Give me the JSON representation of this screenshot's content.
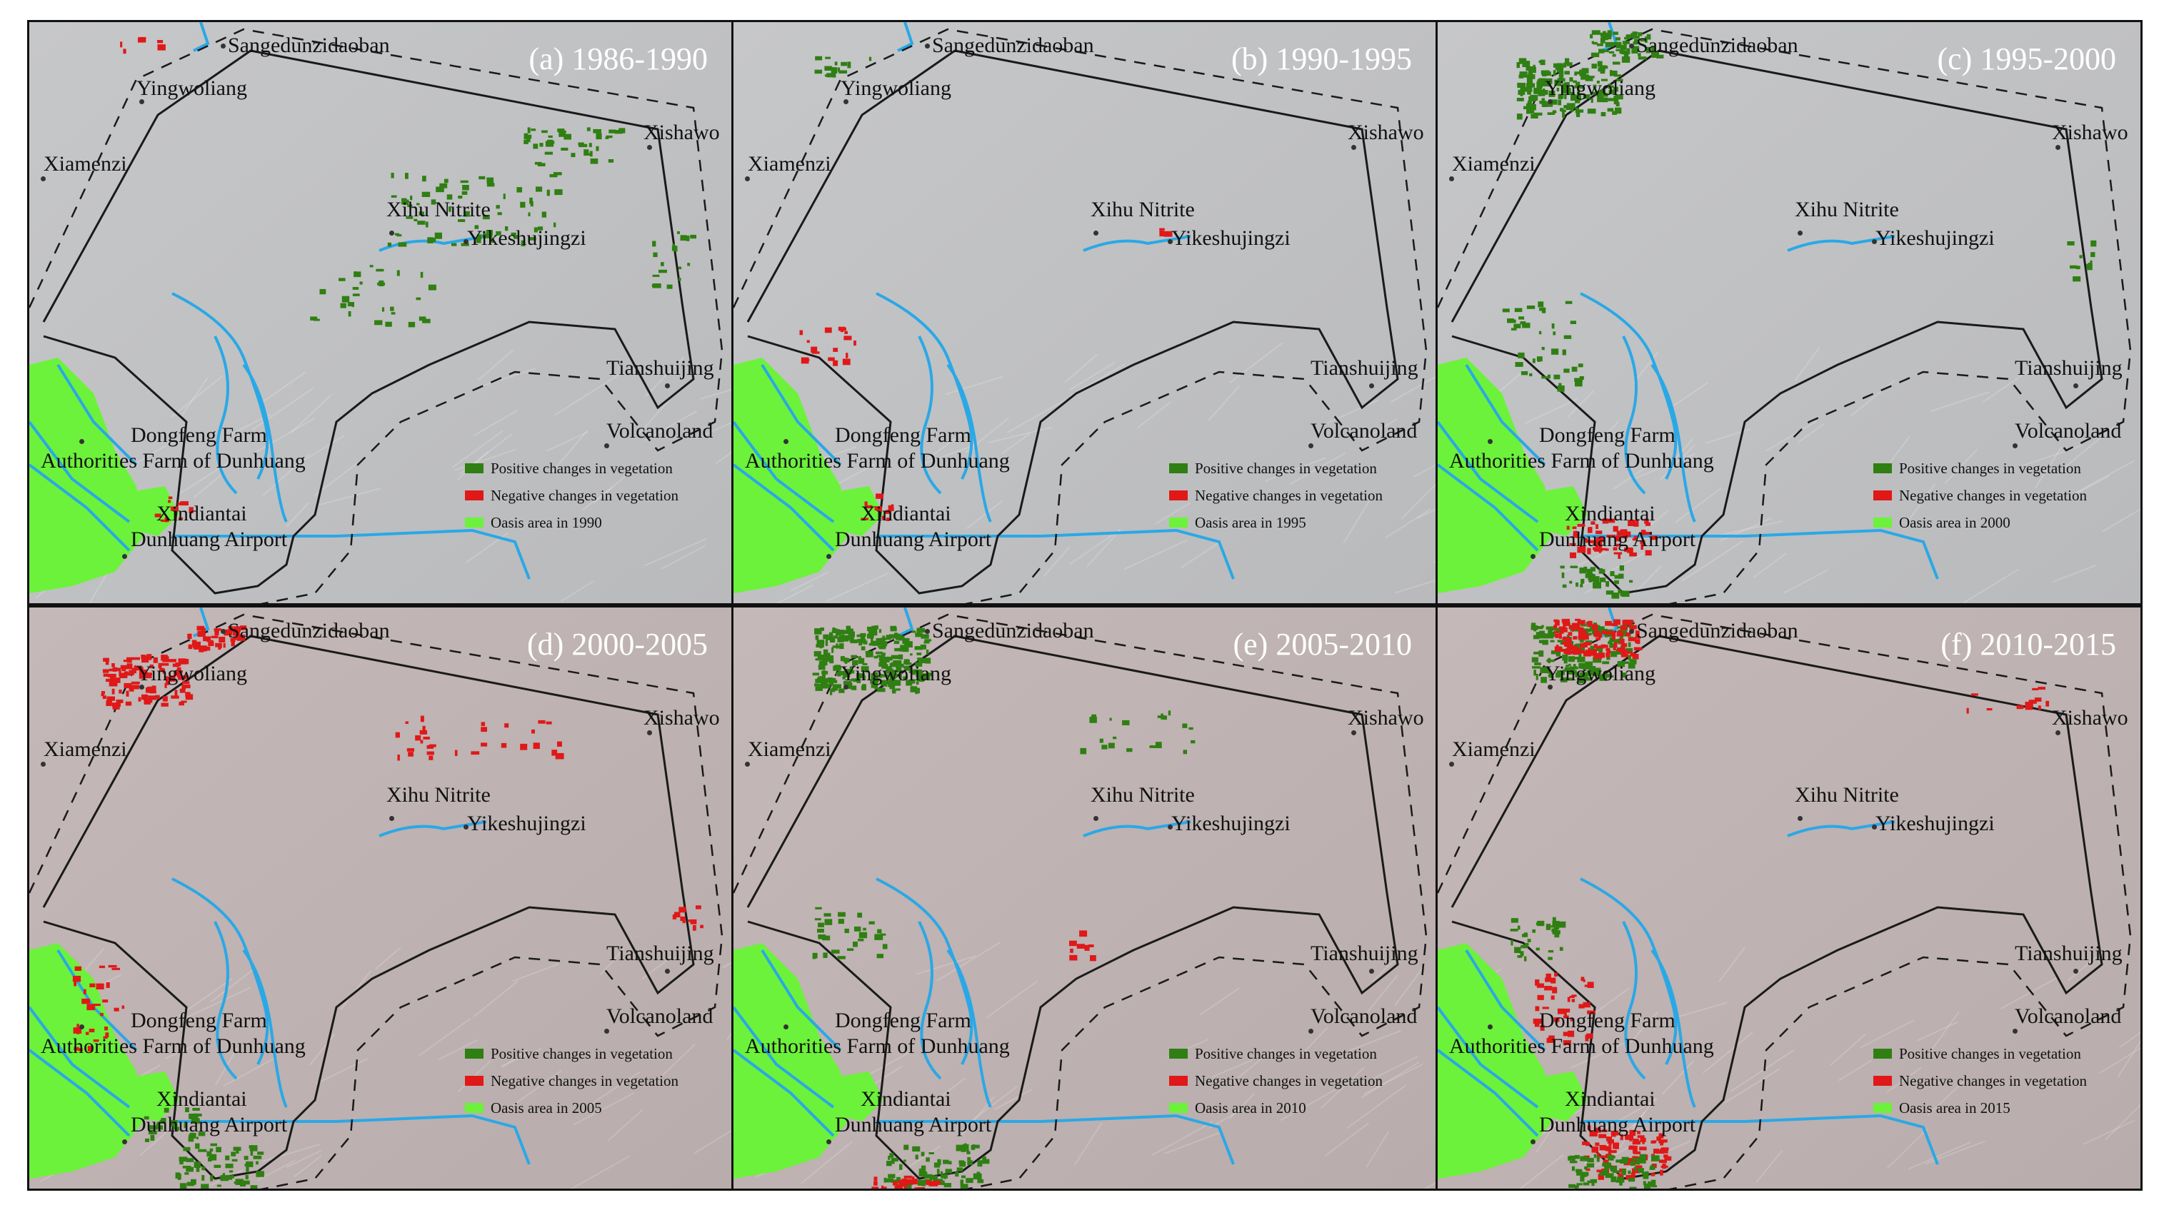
{
  "colors": {
    "positive": "#2f7f12",
    "negative": "#e01818",
    "oasis": "#6cf23a",
    "river": "#2aa8e6",
    "boundary": "#1a1a1a",
    "background_top": "#c6c7c9",
    "background_bottom": "#c4b8b8",
    "title_text": "#ffffff"
  },
  "place_names": {
    "sangedunzidaoban": "Sangedunzidaoban",
    "yingwoliang": "Yingwoliang",
    "xishawo": "Xishawo",
    "xiamenzi": "Xiamenzi",
    "xihu_nitrite": "Xihu Nitrite",
    "yikeshujingzi": "Yikeshujingzi",
    "tianshuijing": "Tianshuijing",
    "volcanoland": "Volcanoland",
    "dongfeng_farm": "Dongfeng Farm",
    "authorities_farm": "Authorities Farm of Dunhuang",
    "xindiantai": "Xindiantai",
    "dunhuang_airport": "Dunhuang Airport"
  },
  "legend": {
    "positive": "Positive changes in vegetation",
    "negative": "Negative changes in vegetation"
  },
  "panels": [
    {
      "title": "(a) 1986-1990",
      "oasis_label": "Oasis area in 1990"
    },
    {
      "title": "(b) 1990-1995",
      "oasis_label": "Oasis area in 1995"
    },
    {
      "title": "(c) 1995-2000",
      "oasis_label": "Oasis area in 2000"
    },
    {
      "title": "(d) 2000-2005",
      "oasis_label": "Oasis area in 2005"
    },
    {
      "title": "(e) 2005-2010",
      "oasis_label": "Oasis area in 2010"
    },
    {
      "title": "(f) 2010-2015",
      "oasis_label": "Oasis area in 2015"
    }
  ]
}
